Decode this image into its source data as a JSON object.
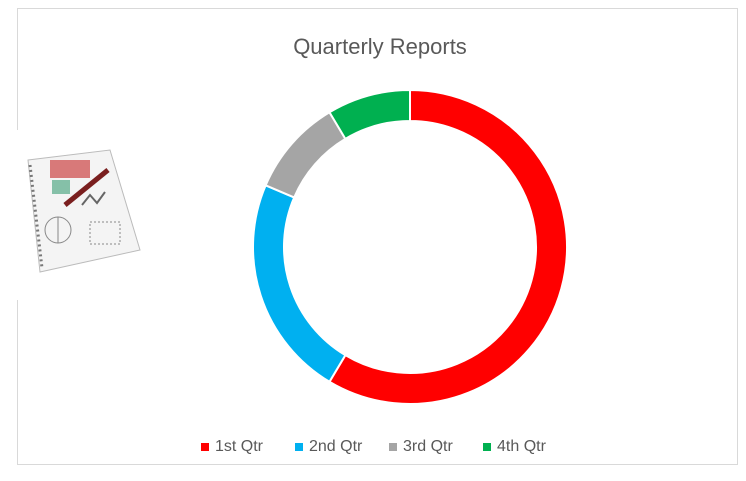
{
  "chart_data": {
    "type": "donut",
    "title": "Quarterly Reports",
    "categories": [
      "1st Qtr",
      "2nd Qtr",
      "3rd Qtr",
      "4th Qtr"
    ],
    "values": [
      8.2,
      3.2,
      1.4,
      1.2
    ],
    "colors": [
      "#ff0000",
      "#00b0f0",
      "#a5a5a5",
      "#00b050"
    ],
    "legend": "bottom"
  }
}
